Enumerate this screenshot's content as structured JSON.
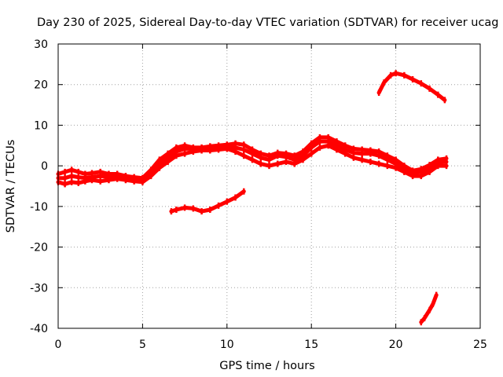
{
  "chart_data": {
    "type": "line",
    "title": "Day 230 of 2025, Sidereal Day-to-day VTEC variation (SDTVAR) for receiver ucag",
    "xlabel": "GPS time / hours",
    "ylabel": "SDTVAR / TECUs",
    "xlim": [
      0,
      25
    ],
    "ylim": [
      -40,
      30
    ],
    "xticks": [
      0,
      5,
      10,
      15,
      20,
      25
    ],
    "yticks": [
      -40,
      -30,
      -20,
      -10,
      0,
      10,
      20,
      30
    ],
    "grid": true,
    "color": "#ff0000",
    "series": [
      {
        "name": "band-low",
        "x": [
          0,
          0.4,
          0.8,
          1.2,
          1.6,
          2.0,
          2.5,
          3.0,
          3.5,
          4.0,
          4.5,
          5.0,
          5.5,
          6.0,
          6.5,
          7.0,
          7.5,
          8.0,
          8.5,
          9.0,
          9.5,
          10.0,
          10.5,
          11.0,
          11.5,
          12.0,
          12.5,
          13.0,
          13.5,
          14.0,
          14.5,
          15.0,
          15.5,
          16.0,
          16.5,
          17.0,
          17.5,
          18.0,
          18.5,
          19.0,
          19.5,
          20.0,
          20.5,
          21.0,
          21.5,
          22.0,
          22.5,
          23.0
        ],
        "y": [
          -4,
          -4.5,
          -4,
          -4.2,
          -3.8,
          -3.5,
          -3.8,
          -3.5,
          -3.2,
          -3.5,
          -3.8,
          -4,
          -2.5,
          -0.5,
          1,
          2.5,
          3,
          3.5,
          3.8,
          3.8,
          4,
          4.2,
          3.5,
          2.5,
          1.5,
          0.5,
          0,
          0.5,
          1,
          0.5,
          1.5,
          3,
          4.5,
          5,
          4,
          3,
          2,
          1.5,
          1,
          0.5,
          0,
          -0.5,
          -1.5,
          -2.5,
          -2.5,
          -1.5,
          0,
          0
        ]
      },
      {
        "name": "band-mid",
        "x": [
          0,
          0.4,
          0.8,
          1.2,
          1.6,
          2.0,
          2.5,
          3.0,
          3.5,
          4.0,
          4.5,
          5.0,
          5.5,
          6.0,
          6.5,
          7.0,
          7.5,
          8.0,
          8.5,
          9.0,
          9.5,
          10.0,
          10.5,
          11.0,
          11.5,
          12.0,
          12.5,
          13.0,
          13.5,
          14.0,
          14.5,
          15.0,
          15.5,
          16.0,
          16.5,
          17.0,
          17.5,
          18.0,
          18.5,
          19.0,
          19.5,
          20.0,
          20.5,
          21.0,
          21.5,
          22.0,
          22.5,
          23.0
        ],
        "y": [
          -3,
          -3,
          -2.5,
          -2.8,
          -3,
          -2.8,
          -2.5,
          -2.8,
          -2.5,
          -2.8,
          -3.2,
          -3.2,
          -1.5,
          0.5,
          2,
          3.5,
          4.2,
          4.2,
          4.2,
          4.5,
          4.5,
          4.8,
          4.5,
          4,
          3,
          2,
          1.5,
          2.5,
          2.2,
          1.5,
          2.5,
          4.5,
          6,
          6,
          5,
          4,
          3.2,
          3,
          3,
          2.5,
          1.5,
          0.5,
          -0.8,
          -1.8,
          -1.5,
          -0.5,
          0.8,
          1
        ]
      },
      {
        "name": "band-high",
        "x": [
          0,
          0.4,
          0.8,
          1.2,
          1.6,
          2.0,
          2.5,
          3.0,
          3.5,
          4.0,
          4.5,
          5.0,
          5.5,
          6.0,
          6.5,
          7.0,
          7.5,
          8.0,
          8.5,
          9.0,
          9.5,
          10.0,
          10.5,
          11.0,
          11.5,
          12.0,
          12.5,
          13.0,
          13.5,
          14.0,
          14.5,
          15.0,
          15.5,
          16.0,
          16.5,
          17.0,
          17.5,
          18.0,
          18.5,
          19.0,
          19.5,
          20.0,
          20.5,
          21.0,
          21.5,
          22.0,
          22.5,
          23.0
        ],
        "y": [
          -2,
          -1.5,
          -1,
          -1.5,
          -2,
          -1.8,
          -1.5,
          -2,
          -2,
          -2.5,
          -2.8,
          -3,
          -1,
          1.5,
          3,
          4.5,
          5,
          4.5,
          4.5,
          4.8,
          5,
          5.2,
          5.5,
          5.2,
          4,
          3,
          2.5,
          3.2,
          3,
          2.5,
          3.5,
          5.5,
          7,
          7,
          6,
          5,
          4.2,
          4,
          3.8,
          3.5,
          2.5,
          1.5,
          0,
          -1.2,
          -0.8,
          0.2,
          1.5,
          1.8
        ]
      },
      {
        "name": "arc-mid",
        "x": [
          6.7,
          7.0,
          7.5,
          8.0,
          8.5,
          9.0,
          9.5,
          10.0,
          10.5,
          11.0
        ],
        "y": [
          -11.2,
          -10.8,
          -10.3,
          -10.5,
          -11.2,
          -10.8,
          -9.8,
          -8.8,
          -7.8,
          -6.3
        ]
      },
      {
        "name": "arc-high",
        "x": [
          19.0,
          19.3,
          19.7,
          20.0,
          20.5,
          21.0,
          21.5,
          22.0,
          22.5,
          22.9
        ],
        "y": [
          18,
          20.5,
          22.3,
          22.8,
          22.3,
          21.3,
          20.3,
          19.0,
          17.5,
          16.2
        ]
      },
      {
        "name": "arc-low",
        "x": [
          21.5,
          21.7,
          22.0,
          22.2,
          22.4
        ],
        "y": [
          -38.5,
          -37.5,
          -35.5,
          -34,
          -31.8
        ]
      }
    ]
  }
}
